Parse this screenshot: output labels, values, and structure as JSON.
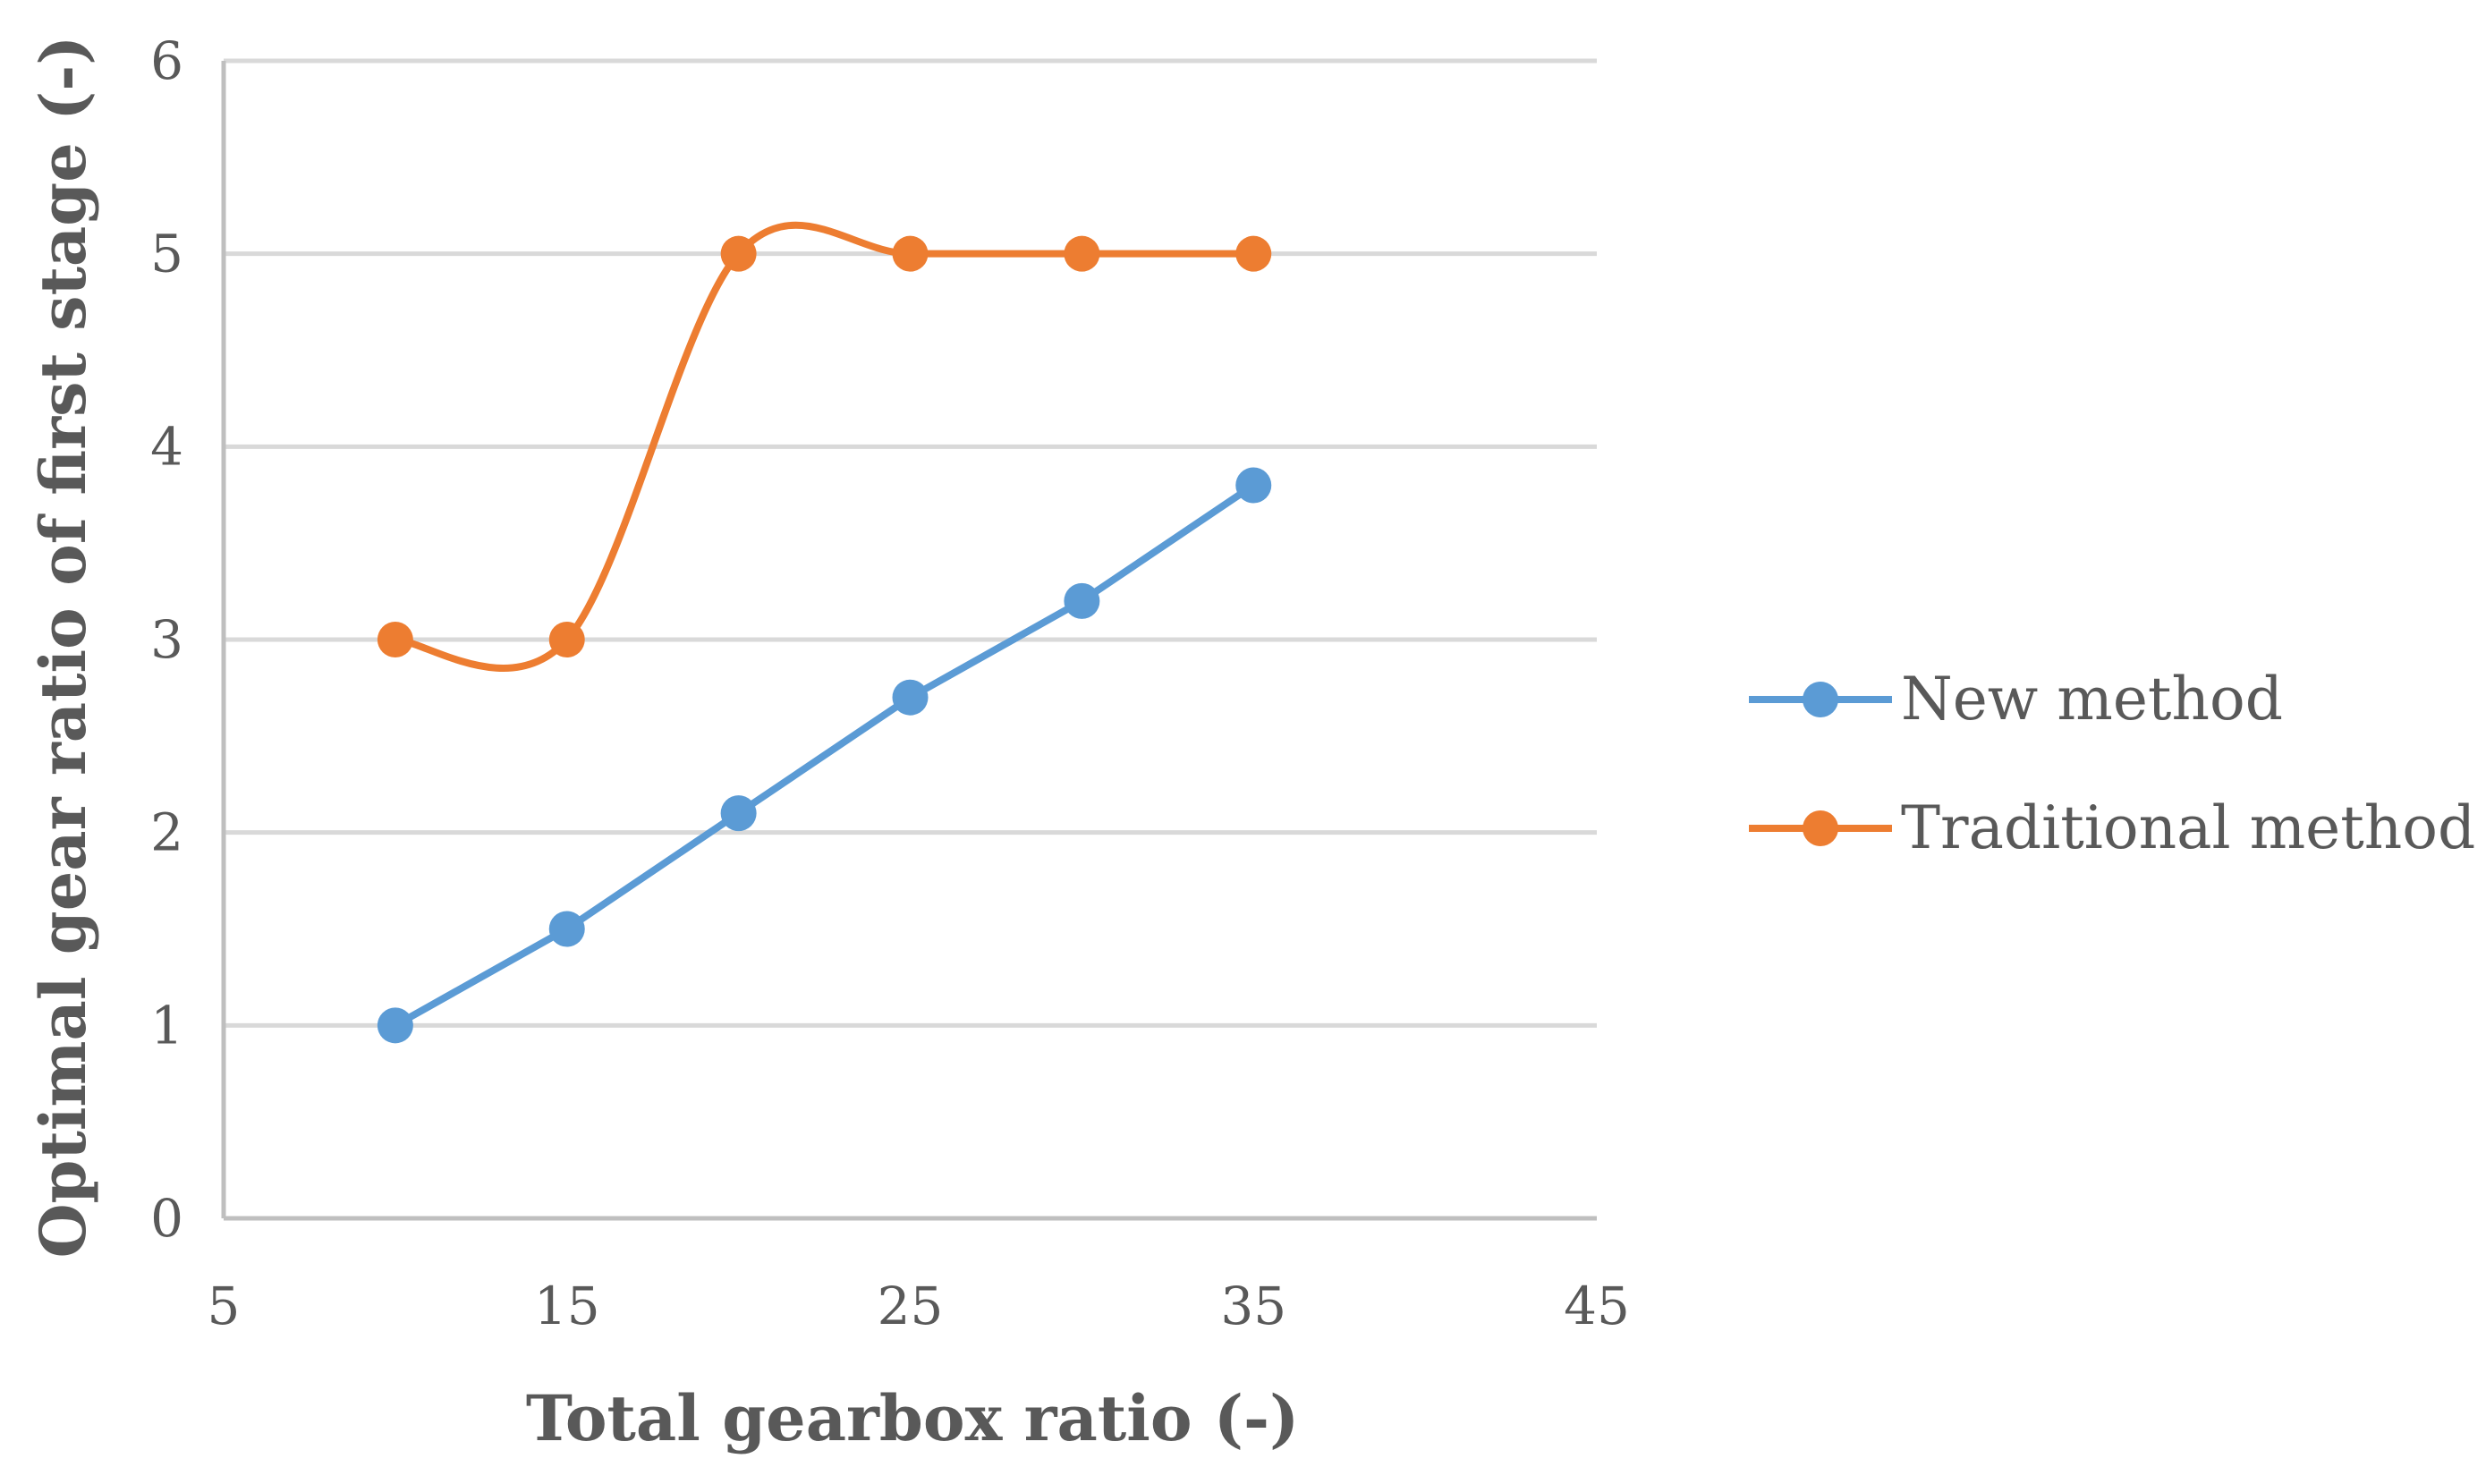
{
  "chart_data": {
    "type": "line",
    "xlabel": "Total gearbox ratio (-)",
    "ylabel": "Optimal gear ratio of first stage (-)",
    "xlim": [
      5,
      45
    ],
    "ylim": [
      0,
      6
    ],
    "x_ticks": [
      "5",
      "15",
      "25",
      "35",
      "45"
    ],
    "y_ticks": [
      "0",
      "1",
      "2",
      "3",
      "4",
      "5",
      "6"
    ],
    "grid": "horizontal",
    "legend_position": "right",
    "series": [
      {
        "name": "New method",
        "color": "#5b9bd5",
        "smooth": false,
        "x": [
          10,
          15,
          20,
          25,
          30,
          35
        ],
        "y": [
          1.0,
          1.5,
          2.1,
          2.7,
          3.2,
          3.8
        ]
      },
      {
        "name": "Traditional method",
        "color": "#ed7d31",
        "smooth": true,
        "x": [
          10,
          15,
          20,
          25,
          30,
          35
        ],
        "y": [
          3,
          3,
          5,
          5,
          5,
          5
        ]
      }
    ]
  }
}
